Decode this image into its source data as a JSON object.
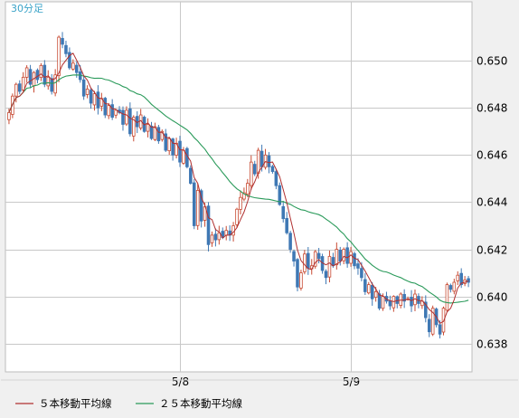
{
  "chart_data": {
    "type": "candlestick",
    "interval_label": "30分足",
    "xlabel": "",
    "ylabel": "",
    "ylim": [
      0.6368,
      0.6525
    ],
    "yticks": [
      0.65,
      0.648,
      0.646,
      0.644,
      0.642,
      0.64,
      0.638
    ],
    "ytick_labels": [
      "0.650",
      "0.648",
      "0.646",
      "0.644",
      "0.642",
      "0.640",
      "0.638"
    ],
    "xticks": [
      {
        "label": "5/8",
        "index": 48
      },
      {
        "label": "5/9",
        "index": 96
      }
    ],
    "grid": true,
    "legend_position": "bottom-left",
    "colors": {
      "up": "#c84a32",
      "down": "#3f78b4",
      "ma5": "#b03030",
      "ma25": "#2a9a5a",
      "grid": "#c8c8c8",
      "plot_bg": "#ffffff"
    },
    "close": [
      0.6478,
      0.6485,
      0.649,
      0.6487,
      0.6493,
      0.6497,
      0.649,
      0.6495,
      0.6492,
      0.6498,
      0.649,
      0.6493,
      0.6487,
      0.6494,
      0.651,
      0.6507,
      0.6503,
      0.6497,
      0.6499,
      0.6495,
      0.6492,
      0.6485,
      0.6488,
      0.6482,
      0.6486,
      0.648,
      0.6484,
      0.6477,
      0.6481,
      0.6476,
      0.6479,
      0.6478,
      0.6473,
      0.6479,
      0.6469,
      0.6476,
      0.6472,
      0.6477,
      0.647,
      0.6473,
      0.6467,
      0.6472,
      0.6466,
      0.647,
      0.6462,
      0.6467,
      0.646,
      0.6465,
      0.6457,
      0.6462,
      0.6455,
      0.6448,
      0.643,
      0.6445,
      0.6432,
      0.6438,
      0.6422,
      0.6426,
      0.6424,
      0.6427,
      0.6425,
      0.6428,
      0.6426,
      0.643,
      0.6437,
      0.6442,
      0.6444,
      0.6448,
      0.6457,
      0.6452,
      0.6462,
      0.6455,
      0.646,
      0.6455,
      0.6453,
      0.6447,
      0.6439,
      0.6433,
      0.6427,
      0.642,
      0.6415,
      0.6404,
      0.641,
      0.6418,
      0.6412,
      0.6413,
      0.6419,
      0.6416,
      0.6411,
      0.6408,
      0.6417,
      0.6413,
      0.642,
      0.6415,
      0.642,
      0.6414,
      0.6419,
      0.6413,
      0.6412,
      0.6408,
      0.6402,
      0.6405,
      0.6399,
      0.6402,
      0.6395,
      0.64,
      0.6398,
      0.6396,
      0.64,
      0.6397,
      0.6401,
      0.6398,
      0.6399,
      0.6396,
      0.6401,
      0.6397,
      0.6398,
      0.6391,
      0.6385,
      0.6395,
      0.6388,
      0.6384,
      0.6395,
      0.6405,
      0.6403,
      0.6406,
      0.6409,
      0.6405,
      0.6407,
      0.6406
    ],
    "series": [
      {
        "name": "５本移動平均線"
      },
      {
        "name": "２５本移動平均線"
      }
    ]
  }
}
